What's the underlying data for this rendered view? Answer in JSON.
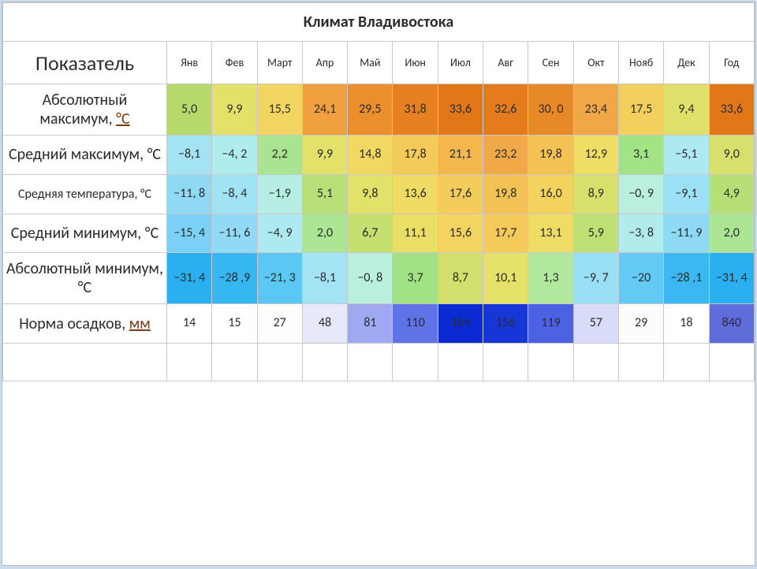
{
  "title": "Климат Владивостока",
  "indicator_header": "Показатель",
  "months": [
    "Янв",
    "Фев",
    "Март",
    "Апр",
    "Май",
    "Июн",
    "Июл",
    "Авг",
    "Сен",
    "Окт",
    "Нояб",
    "Дек",
    "Год"
  ],
  "unit_c_link": "°C",
  "unit_mm_link": "мм",
  "col_widths": {
    "label": 208,
    "month": 57
  },
  "fonts": {
    "title_size": 20,
    "indicator_size": 26,
    "month_header_size": 14,
    "row_label_size": 20,
    "row_label_small": 16,
    "cell_size": 16
  },
  "rows": [
    {
      "label_pre": "Абсолютный максимум, ",
      "label_link": "°C",
      "label_post": "",
      "label_class": "",
      "cells": [
        {
          "v": "5,0",
          "bg": "#b7d96a"
        },
        {
          "v": "9,9",
          "bg": "#e4e16a"
        },
        {
          "v": "15,5",
          "bg": "#f2d560"
        },
        {
          "v": "24,1",
          "bg": "#f0a03e"
        },
        {
          "v": "29,5",
          "bg": "#eb8f2e"
        },
        {
          "v": "31,8",
          "bg": "#e68122"
        },
        {
          "v": "33,6",
          "bg": "#e27718"
        },
        {
          "v": "32,6",
          "bg": "#e47c1d"
        },
        {
          "v": "30, 0",
          "bg": "#e88927"
        },
        {
          "v": "23,4",
          "bg": "#f1a746"
        },
        {
          "v": "17,5",
          "bg": "#f3cf5e"
        },
        {
          "v": "9,4",
          "bg": "#dfe06a"
        },
        {
          "v": "33,6",
          "bg": "#e27718"
        }
      ]
    },
    {
      "label_pre": "Средний максимум, °C",
      "label_link": "",
      "label_post": "",
      "label_class": "",
      "cells": [
        {
          "v": "−8,1",
          "bg": "#a3e3f4"
        },
        {
          "v": "−4, 2",
          "bg": "#afecee"
        },
        {
          "v": "2,2",
          "bg": "#a9e590"
        },
        {
          "v": "9,9",
          "bg": "#e4e16a"
        },
        {
          "v": "14,8",
          "bg": "#f2d862"
        },
        {
          "v": "17,8",
          "bg": "#f4cb5a"
        },
        {
          "v": "21,1",
          "bg": "#f3b74e"
        },
        {
          "v": "23,2",
          "bg": "#f1a948"
        },
        {
          "v": "19,8",
          "bg": "#f3c154"
        },
        {
          "v": "12,9",
          "bg": "#eede66"
        },
        {
          "v": "3,1",
          "bg": "#a2e386"
        },
        {
          "v": "−5,1",
          "bg": "#ace9f0"
        },
        {
          "v": "9,0",
          "bg": "#d8e06c"
        }
      ]
    },
    {
      "label_pre": "Средняя температура, °C",
      "label_link": "",
      "label_post": "",
      "label_class": "sm",
      "cells": [
        {
          "v": "−11, 8",
          "bg": "#8fd9f5"
        },
        {
          "v": "−8, 4",
          "bg": "#a1e2f4"
        },
        {
          "v": "−1,9",
          "bg": "#b7eee4"
        },
        {
          "v": "5,1",
          "bg": "#b8df78"
        },
        {
          "v": "9,8",
          "bg": "#e2e16a"
        },
        {
          "v": "13,6",
          "bg": "#efdb64"
        },
        {
          "v": "17,6",
          "bg": "#f4cc5b"
        },
        {
          "v": "19,8",
          "bg": "#f3c154"
        },
        {
          "v": "16,0",
          "bg": "#f3d25e"
        },
        {
          "v": "8,9",
          "bg": "#d7e06c"
        },
        {
          "v": "−0, 9",
          "bg": "#baefdd"
        },
        {
          "v": "−9,1",
          "bg": "#9ce0f5"
        },
        {
          "v": "4,9",
          "bg": "#b6df78"
        }
      ]
    },
    {
      "label_pre": "Средний минимум, °C",
      "label_link": "",
      "label_post": "",
      "label_class": "",
      "cells": [
        {
          "v": "−15, 4",
          "bg": "#7bd0f5"
        },
        {
          "v": "−11, 6",
          "bg": "#90daf5"
        },
        {
          "v": "−4, 9",
          "bg": "#adeaef"
        },
        {
          "v": "2,0",
          "bg": "#abe694"
        },
        {
          "v": "6,7",
          "bg": "#c5e070"
        },
        {
          "v": "11,1",
          "bg": "#eade67"
        },
        {
          "v": "15,6",
          "bg": "#f3d460"
        },
        {
          "v": "17,7",
          "bg": "#f4cb5a"
        },
        {
          "v": "13,1",
          "bg": "#efdc65"
        },
        {
          "v": "5,9",
          "bg": "#bee074"
        },
        {
          "v": "−3, 8",
          "bg": "#b1ebeb"
        },
        {
          "v": "−11, 9",
          "bg": "#8fd9f5"
        },
        {
          "v": "2,0",
          "bg": "#abe694"
        }
      ]
    },
    {
      "label_pre": "Абсолютный минимум, °C",
      "label_link": "",
      "label_post": "",
      "label_class": "",
      "cells": [
        {
          "v": "−31, 4",
          "bg": "#2ab0f1"
        },
        {
          "v": "−28 ,9",
          "bg": "#36b7f2"
        },
        {
          "v": "−21, 3",
          "bg": "#5bc7f3"
        },
        {
          "v": "−8,1",
          "bg": "#a3e3f4"
        },
        {
          "v": "−0, 8",
          "bg": "#baefdd"
        },
        {
          "v": "3,7",
          "bg": "#a1e384"
        },
        {
          "v": "8,7",
          "bg": "#d4e06d"
        },
        {
          "v": "10,1",
          "bg": "#e6e169"
        },
        {
          "v": "1,3",
          "bg": "#b0e89e"
        },
        {
          "v": "−9, 7",
          "bg": "#99dff5"
        },
        {
          "v": "−20",
          "bg": "#62caf4"
        },
        {
          "v": "−28 ,1",
          "bg": "#39b8f2"
        },
        {
          "v": "−31, 4",
          "bg": "#2ab0f1"
        }
      ]
    },
    {
      "label_pre": "Норма осадков, ",
      "label_link": "мм",
      "label_post": "",
      "label_class": "",
      "cells": [
        {
          "v": "14",
          "bg": "#ffffff"
        },
        {
          "v": "15",
          "bg": "#ffffff"
        },
        {
          "v": "27",
          "bg": "#fdfdfe"
        },
        {
          "v": "48",
          "bg": "#e7e9fb"
        },
        {
          "v": "81",
          "bg": "#9ea9f1"
        },
        {
          "v": "110",
          "bg": "#5f72e6"
        },
        {
          "v": "164",
          "bg": "#0a2bd1"
        },
        {
          "v": "156",
          "bg": "#1636d6"
        },
        {
          "v": "119",
          "bg": "#4d62e3"
        },
        {
          "v": "57",
          "bg": "#d8dcf8"
        },
        {
          "v": "29",
          "bg": "#fcfcfe"
        },
        {
          "v": "18",
          "bg": "#ffffff"
        },
        {
          "v": "840",
          "bg": "#5e6dda"
        }
      ]
    }
  ]
}
